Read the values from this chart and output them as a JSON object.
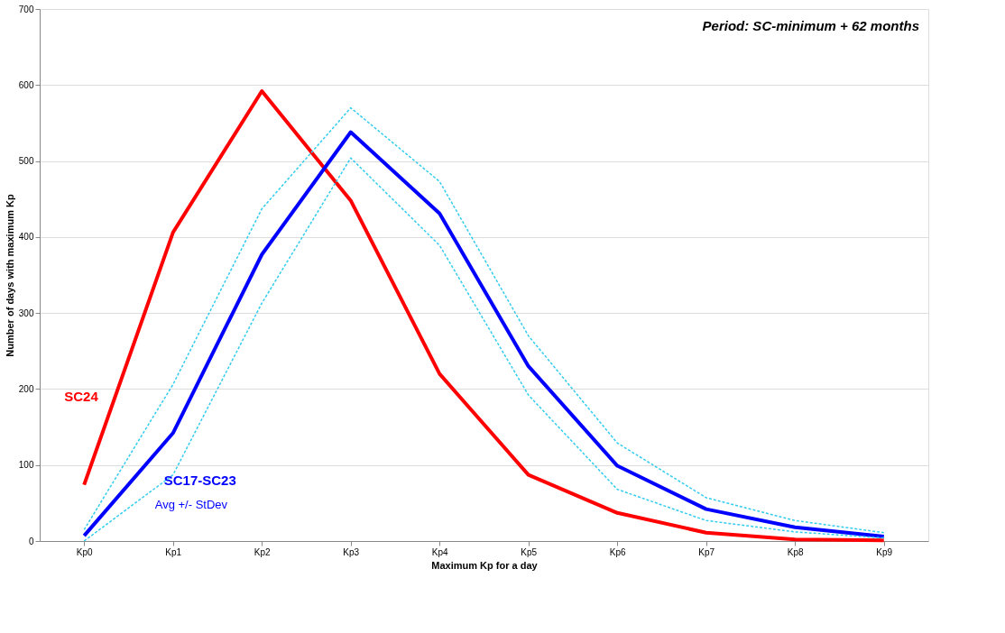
{
  "chart_data": {
    "type": "line",
    "xlabel": "Maximum Kp for a day",
    "ylabel": "Number of days with maximum Kp",
    "categories": [
      "Kp0",
      "Kp1",
      "Kp2",
      "Kp3",
      "Kp4",
      "Kp5",
      "Kp6",
      "Kp7",
      "Kp8",
      "Kp9"
    ],
    "series": [
      {
        "name": "SC24",
        "color": "#ff0000",
        "values": [
          74,
          406,
          592,
          448,
          220,
          87,
          37,
          11,
          2,
          1
        ]
      },
      {
        "name": "SC17-SC23",
        "color": "#0000ff",
        "values": [
          7,
          142,
          377,
          538,
          431,
          230,
          99,
          42,
          18,
          6
        ]
      },
      {
        "color": "#33ccee",
        "line_style": "dashed",
        "values": [
          15,
          206,
          437,
          570,
          473,
          270,
          129,
          57,
          27,
          11
        ]
      },
      {
        "color": "#33ccee",
        "line_style": "dashed",
        "values": [
          0,
          87,
          313,
          504,
          389,
          192,
          68,
          27,
          12,
          4
        ]
      }
    ],
    "ylim": [
      0,
      700
    ],
    "yticks": [
      0,
      100,
      200,
      300,
      400,
      500,
      600,
      700
    ],
    "grid": "y",
    "line_style": "solid",
    "annotations": [
      "Avg +/- StDev",
      "Period: SC-minimum + 62 months"
    ]
  }
}
